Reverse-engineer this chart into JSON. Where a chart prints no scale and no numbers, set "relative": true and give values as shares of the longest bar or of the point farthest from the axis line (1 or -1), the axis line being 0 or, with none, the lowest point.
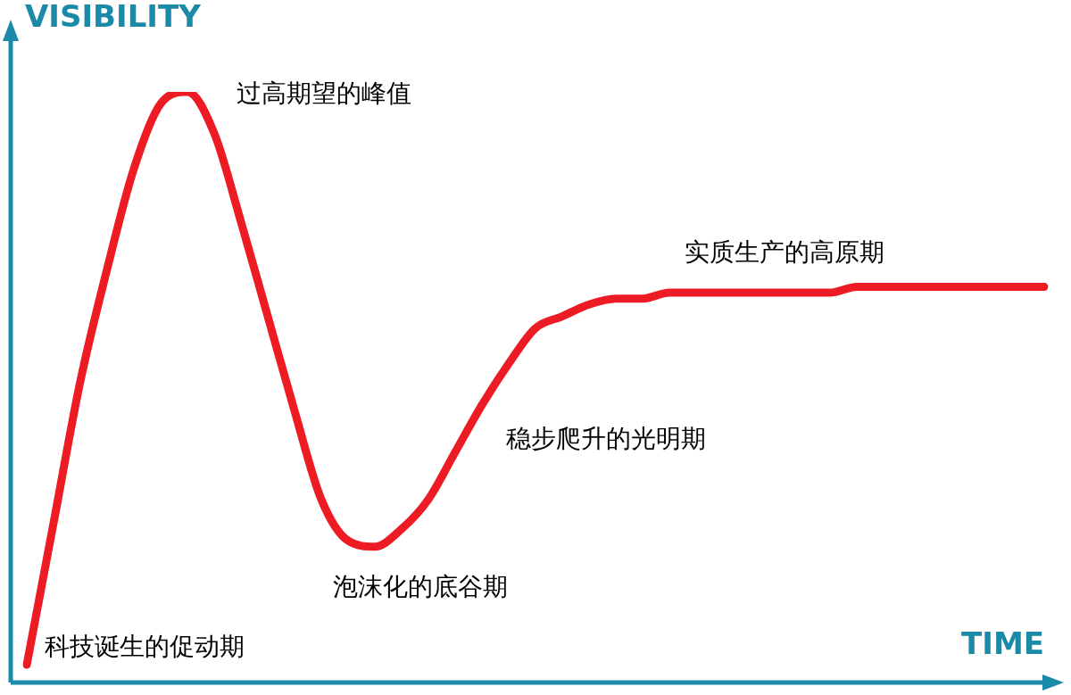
{
  "chart_data": {
    "type": "line",
    "relative": true,
    "xlabel": "TIME",
    "ylabel": "VISIBILITY",
    "marker": "none",
    "line_style": "solid",
    "legend": false,
    "categories": [
      null,
      null,
      null,
      null,
      null,
      null,
      null,
      null,
      null,
      null,
      null,
      null,
      null,
      null,
      null,
      null,
      null,
      null,
      null,
      null,
      null,
      null,
      null,
      null,
      null,
      null,
      null,
      null,
      null,
      null,
      null,
      null,
      null,
      null,
      null,
      null,
      null,
      null,
      null
    ],
    "series": [
      {
        "color": "#ed1c24",
        "values": [
          0.03,
          0.27,
          0.51,
          0.7,
          0.87,
          0.98,
          1,
          0.93,
          0.78,
          0.62,
          0.46,
          0.31,
          0.24,
          0.23,
          0.26,
          0.31,
          0.39,
          0.47,
          0.54,
          0.6,
          0.62,
          0.64,
          0.65,
          0.65,
          0.66,
          0.66,
          0.66,
          0.66,
          0.66,
          0.66,
          0.66,
          0.67,
          0.67,
          0.67,
          0.67,
          0.67,
          0.67,
          0.67,
          0.67
        ]
      }
    ],
    "annotations": [
      "过高期望的峰值",
      "实质生产的高原期",
      "稳步爬升的光明期",
      "泡沫化的底谷期",
      "科技诞生的促动期"
    ]
  }
}
